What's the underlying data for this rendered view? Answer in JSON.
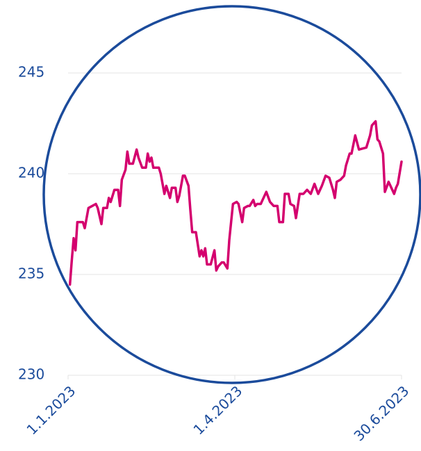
{
  "chart_data": {
    "type": "line",
    "x": [
      "2023-01-02",
      "2023-01-03",
      "2023-01-04",
      "2023-01-05",
      "2023-01-06",
      "2023-01-09",
      "2023-01-10",
      "2023-01-12",
      "2023-01-14",
      "2023-01-16",
      "2023-01-17",
      "2023-01-19",
      "2023-01-20",
      "2023-01-22",
      "2023-01-23",
      "2023-01-24",
      "2023-01-26",
      "2023-01-28",
      "2023-01-29",
      "2023-01-30",
      "2023-02-01",
      "2023-02-02",
      "2023-02-03",
      "2023-02-05",
      "2023-02-07",
      "2023-02-08",
      "2023-02-10",
      "2023-02-12",
      "2023-02-13",
      "2023-02-14",
      "2023-02-15",
      "2023-02-16",
      "2023-02-19",
      "2023-02-20",
      "2023-02-22",
      "2023-02-23",
      "2023-02-25",
      "2023-02-26",
      "2023-02-28",
      "2023-03-01",
      "2023-03-02",
      "2023-03-04",
      "2023-03-05",
      "2023-03-07",
      "2023-03-08",
      "2023-03-09",
      "2023-03-11",
      "2023-03-13",
      "2023-03-14",
      "2023-03-15",
      "2023-03-16",
      "2023-03-17",
      "2023-03-19",
      "2023-03-21",
      "2023-03-22",
      "2023-03-23",
      "2023-03-25",
      "2023-03-26",
      "2023-03-28",
      "2023-03-29",
      "2023-03-31",
      "2023-04-02",
      "2023-04-03",
      "2023-04-05",
      "2023-04-06",
      "2023-04-08",
      "2023-04-09",
      "2023-04-11",
      "2023-04-12",
      "2023-04-13",
      "2023-04-15",
      "2023-04-18",
      "2023-04-20",
      "2023-04-22",
      "2023-04-24",
      "2023-04-25",
      "2023-04-27",
      "2023-04-28",
      "2023-04-30",
      "2023-05-01",
      "2023-05-03",
      "2023-05-04",
      "2023-05-06",
      "2023-05-08",
      "2023-05-10",
      "2023-05-12",
      "2023-05-14",
      "2023-05-16",
      "2023-05-18",
      "2023-05-20",
      "2023-05-22",
      "2023-05-24",
      "2023-05-25",
      "2023-05-26",
      "2023-05-28",
      "2023-05-30",
      "2023-05-31",
      "2023-06-02",
      "2023-06-03",
      "2023-06-05",
      "2023-06-07",
      "2023-06-11",
      "2023-06-13",
      "2023-06-14",
      "2023-06-16",
      "2023-06-17",
      "2023-06-18",
      "2023-06-20",
      "2023-06-21",
      "2023-06-23",
      "2023-06-24",
      "2023-06-26",
      "2023-06-27",
      "2023-06-28",
      "2023-06-30"
    ],
    "series": [
      {
        "color": "#d4006e",
        "values": [
          234.5,
          235.7,
          236.8,
          236.2,
          237.6,
          237.6,
          237.3,
          238.3,
          238.4,
          238.5,
          238.3,
          237.5,
          238.3,
          238.3,
          238.8,
          238.6,
          239.2,
          239.2,
          238.4,
          239.7,
          240.2,
          241.1,
          240.5,
          240.5,
          241.2,
          240.8,
          240.3,
          240.3,
          241.0,
          240.6,
          240.8,
          240.3,
          240.3,
          240.0,
          239.0,
          239.4,
          238.8,
          239.3,
          239.3,
          238.6,
          238.9,
          239.9,
          239.9,
          239.4,
          238.2,
          237.1,
          237.1,
          235.9,
          236.2,
          235.9,
          236.3,
          235.5,
          235.5,
          236.2,
          235.2,
          235.4,
          235.6,
          235.6,
          235.3,
          236.7,
          238.5,
          238.6,
          238.5,
          237.6,
          238.3,
          238.4,
          238.4,
          238.7,
          238.4,
          238.5,
          238.5,
          239.1,
          238.6,
          238.4,
          238.4,
          237.6,
          237.6,
          239.0,
          239.0,
          238.5,
          238.4,
          237.8,
          239.0,
          239.0,
          239.2,
          239.0,
          239.5,
          239.0,
          239.4,
          239.9,
          239.8,
          239.2,
          238.8,
          239.6,
          239.7,
          239.9,
          240.4,
          241.0,
          241.0,
          241.9,
          241.2,
          241.3,
          241.9,
          242.4,
          242.6,
          241.7,
          241.6,
          241.0,
          239.1,
          239.6,
          239.4,
          239.0,
          239.3,
          239.5,
          240.6
        ]
      }
    ],
    "xlim": [
      "2023-01-01",
      "2023-06-30"
    ],
    "xticks": [
      {
        "value": "2023-01-01",
        "label": "1.1.2023"
      },
      {
        "value": "2023-04-01",
        "label": "1.4.2023"
      },
      {
        "value": "2023-06-30",
        "label": "30.6.2023"
      }
    ],
    "ylim": [
      230,
      246
    ],
    "yticks": [
      230,
      235,
      240,
      245
    ],
    "grid": true
  }
}
